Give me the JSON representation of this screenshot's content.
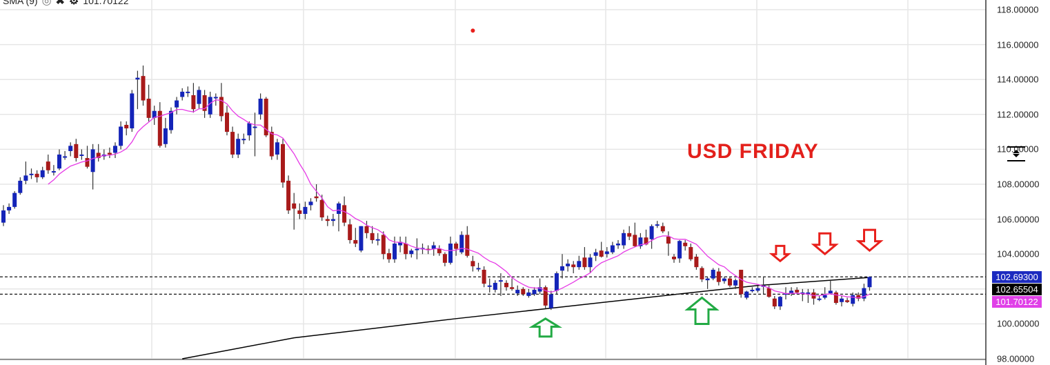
{
  "indicator": {
    "name": "SMA (9)",
    "value": "101.70122",
    "icons": [
      "eye-icon",
      "close-icon",
      "gear-icon"
    ]
  },
  "annotation": "USD FRIDAY",
  "price_tags": [
    {
      "value": "102.69300",
      "color": "#1c2bc0"
    },
    {
      "value": "102.65504",
      "color": "#000000"
    },
    {
      "value": "101.70122",
      "color": "#e040e8"
    }
  ],
  "colors": {
    "up": "#1424b8",
    "down": "#a81a1a",
    "sma_short": "#e63ae6",
    "sma_long": "#000000",
    "arrow_up": "#22aa44",
    "arrow_down": "#e8201c"
  },
  "chart_data": {
    "type": "candlestick",
    "y_axis": {
      "min": 98,
      "max": 118,
      "step": 2,
      "position": "right",
      "tick_labels": [
        "118.00000",
        "116.00000",
        "114.00000",
        "112.00000",
        "110.00000",
        "108.00000",
        "106.00000",
        "104.00000",
        "102.00000",
        "100.00000",
        "98.00000"
      ]
    },
    "grid": true,
    "ohlc": [
      [
        105.8,
        106.8,
        105.6,
        106.5
      ],
      [
        106.5,
        106.9,
        106.3,
        106.7
      ],
      [
        106.7,
        107.6,
        106.6,
        107.5
      ],
      [
        107.5,
        108.4,
        107.4,
        108.2
      ],
      [
        108.2,
        109.3,
        108.0,
        108.5
      ],
      [
        108.6,
        108.9,
        108.3,
        108.6
      ],
      [
        108.6,
        108.8,
        108.1,
        108.4
      ],
      [
        108.4,
        109.0,
        108.3,
        108.8
      ],
      [
        109.3,
        109.7,
        108.6,
        108.8
      ],
      [
        108.75,
        109.1,
        108.5,
        108.75
      ],
      [
        108.9,
        110.0,
        108.8,
        109.7
      ],
      [
        109.6,
        109.9,
        109.4,
        109.6
      ],
      [
        109.9,
        110.4,
        109.6,
        110.2
      ],
      [
        110.3,
        110.6,
        109.3,
        109.5
      ],
      [
        109.7,
        110.0,
        109.4,
        109.7
      ],
      [
        109.5,
        110.2,
        108.9,
        109.0
      ],
      [
        108.7,
        110.3,
        107.7,
        110.0
      ],
      [
        109.8,
        110.3,
        109.3,
        109.5
      ],
      [
        109.6,
        110.0,
        109.4,
        109.7
      ],
      [
        109.8,
        110.1,
        109.5,
        109.7
      ],
      [
        109.8,
        110.4,
        109.5,
        110.2
      ],
      [
        110.2,
        111.6,
        110.0,
        111.3
      ],
      [
        111.4,
        111.6,
        110.8,
        111.2
      ],
      [
        111.2,
        113.4,
        111.0,
        113.2
      ],
      [
        114.0,
        114.5,
        112.3,
        114.1
      ],
      [
        114.2,
        114.8,
        112.5,
        112.8
      ],
      [
        112.9,
        113.7,
        111.6,
        111.8
      ],
      [
        111.8,
        112.5,
        111.4,
        112.2
      ],
      [
        112.2,
        112.7,
        110.1,
        110.2
      ],
      [
        110.3,
        111.8,
        110.1,
        111.2
      ],
      [
        111.1,
        112.4,
        110.9,
        112.2
      ],
      [
        112.4,
        113.0,
        112.0,
        112.8
      ],
      [
        113.0,
        113.5,
        112.8,
        113.3
      ],
      [
        113.3,
        113.6,
        113.0,
        113.3
      ],
      [
        113.1,
        113.8,
        112.1,
        112.3
      ],
      [
        112.6,
        113.6,
        112.3,
        113.4
      ],
      [
        113.1,
        113.4,
        111.8,
        112.2
      ],
      [
        112.0,
        113.3,
        111.8,
        113.0
      ],
      [
        113.0,
        113.2,
        112.5,
        113.0
      ],
      [
        113.0,
        113.8,
        111.6,
        111.9
      ],
      [
        112.1,
        112.5,
        110.8,
        111.0
      ],
      [
        111.0,
        111.3,
        109.5,
        109.7
      ],
      [
        109.7,
        110.9,
        109.5,
        110.6
      ],
      [
        110.6,
        110.9,
        110.3,
        110.6
      ],
      [
        110.8,
        111.6,
        110.5,
        111.5
      ],
      [
        111.3,
        112.1,
        109.6,
        111.3
      ],
      [
        112.0,
        113.2,
        111.7,
        112.9
      ],
      [
        112.9,
        113.0,
        110.7,
        110.8
      ],
      [
        111.0,
        111.3,
        109.4,
        109.6
      ],
      [
        109.7,
        110.6,
        109.4,
        110.4
      ],
      [
        110.3,
        110.6,
        107.8,
        108.1
      ],
      [
        108.2,
        108.5,
        106.3,
        106.5
      ],
      [
        106.9,
        107.5,
        105.4,
        106.6
      ],
      [
        106.5,
        106.9,
        106.0,
        106.3
      ],
      [
        106.3,
        107.0,
        106.0,
        106.7
      ],
      [
        106.8,
        107.2,
        106.5,
        107.0
      ],
      [
        107.3,
        108.0,
        107.0,
        107.2
      ],
      [
        107.1,
        107.4,
        105.9,
        106.1
      ],
      [
        106.0,
        106.2,
        105.6,
        105.9
      ],
      [
        105.9,
        106.3,
        105.6,
        106.0
      ],
      [
        106.3,
        107.0,
        105.3,
        106.9
      ],
      [
        106.8,
        107.3,
        105.6,
        105.8
      ],
      [
        105.7,
        106.0,
        104.6,
        104.8
      ],
      [
        104.8,
        105.5,
        104.4,
        104.6
      ],
      [
        104.2,
        105.6,
        104.1,
        105.6
      ],
      [
        105.6,
        105.9,
        104.9,
        105.2
      ],
      [
        105.2,
        105.6,
        104.6,
        104.8
      ],
      [
        104.85,
        105.2,
        104.5,
        104.85
      ],
      [
        105.1,
        105.3,
        103.7,
        104.0
      ],
      [
        104.05,
        104.3,
        103.5,
        103.7
      ],
      [
        103.7,
        105.0,
        103.5,
        104.6
      ],
      [
        104.5,
        105.0,
        104.1,
        104.7
      ],
      [
        104.6,
        105.0,
        103.7,
        104.0
      ],
      [
        104.0,
        104.3,
        103.8,
        104.2
      ],
      [
        104.25,
        104.9,
        103.7,
        104.3
      ],
      [
        104.35,
        104.6,
        104.0,
        104.35
      ],
      [
        104.3,
        104.5,
        104.0,
        104.25
      ],
      [
        104.3,
        104.7,
        103.9,
        104.5
      ],
      [
        104.3,
        104.5,
        103.9,
        104.05
      ],
      [
        104.0,
        104.1,
        103.3,
        103.5
      ],
      [
        103.5,
        105.0,
        103.4,
        104.6
      ],
      [
        104.6,
        104.7,
        103.9,
        104.3
      ],
      [
        104.1,
        105.3,
        104.0,
        105.1
      ],
      [
        105.1,
        105.6,
        103.8,
        103.9
      ],
      [
        103.6,
        103.9,
        103.0,
        103.3
      ],
      [
        103.2,
        103.5,
        103.0,
        103.2
      ],
      [
        103.1,
        103.3,
        102.1,
        102.3
      ],
      [
        102.2,
        102.6,
        101.8,
        102.2
      ],
      [
        101.95,
        102.5,
        101.8,
        102.35
      ],
      [
        102.5,
        102.9,
        101.6,
        102.5
      ],
      [
        102.35,
        102.5,
        101.9,
        102.1
      ],
      [
        102.1,
        102.6,
        101.9,
        102.0
      ],
      [
        101.75,
        102.2,
        101.6,
        101.95
      ],
      [
        102.0,
        102.1,
        101.6,
        101.7
      ],
      [
        101.6,
        102.0,
        101.5,
        101.8
      ],
      [
        101.7,
        102.1,
        101.6,
        101.95
      ],
      [
        101.85,
        102.6,
        101.7,
        102.1
      ],
      [
        102.1,
        102.2,
        100.9,
        101.05
      ],
      [
        100.9,
        101.9,
        100.8,
        101.7
      ],
      [
        101.9,
        103.0,
        101.7,
        102.9
      ],
      [
        103.05,
        104.0,
        102.6,
        103.3
      ],
      [
        103.3,
        103.7,
        103.0,
        103.45
      ],
      [
        103.4,
        103.6,
        102.9,
        103.25
      ],
      [
        103.25,
        103.9,
        103.1,
        103.6
      ],
      [
        103.8,
        104.4,
        103.1,
        103.25
      ],
      [
        103.25,
        104.0,
        102.9,
        103.8
      ],
      [
        103.9,
        104.3,
        103.6,
        104.1
      ],
      [
        104.2,
        104.7,
        103.8,
        103.85
      ],
      [
        104.0,
        104.4,
        103.8,
        104.15
      ],
      [
        104.1,
        104.7,
        104.0,
        104.5
      ],
      [
        104.5,
        104.8,
        104.3,
        104.6
      ],
      [
        104.5,
        105.4,
        104.3,
        105.2
      ],
      [
        105.2,
        105.6,
        104.8,
        105.0
      ],
      [
        105.1,
        105.8,
        104.4,
        104.45
      ],
      [
        104.45,
        105.2,
        104.3,
        104.95
      ],
      [
        104.95,
        105.4,
        104.5,
        104.55
      ],
      [
        104.85,
        105.7,
        104.3,
        105.6
      ],
      [
        105.7,
        105.9,
        105.5,
        105.7
      ],
      [
        105.6,
        105.8,
        105.2,
        105.3
      ],
      [
        105.0,
        105.3,
        103.9,
        104.6
      ],
      [
        103.85,
        104.0,
        103.5,
        103.7
      ],
      [
        103.75,
        104.8,
        103.5,
        104.75
      ],
      [
        104.65,
        104.8,
        104.2,
        104.45
      ],
      [
        104.4,
        104.6,
        103.6,
        103.7
      ],
      [
        103.85,
        104.0,
        103.1,
        103.25
      ],
      [
        103.2,
        103.3,
        102.4,
        102.55
      ],
      [
        102.5,
        102.7,
        102.0,
        102.6
      ],
      [
        102.6,
        103.2,
        102.5,
        103.1
      ],
      [
        103.0,
        103.2,
        102.2,
        102.4
      ],
      [
        102.45,
        102.7,
        102.3,
        102.6
      ],
      [
        102.6,
        102.7,
        102.1,
        102.2
      ],
      [
        102.2,
        102.6,
        102.0,
        102.5
      ],
      [
        103.1,
        103.1,
        101.5,
        101.7
      ],
      [
        101.5,
        101.9,
        101.4,
        101.85
      ],
      [
        101.95,
        102.1,
        101.8,
        101.95
      ],
      [
        101.9,
        102.2,
        101.8,
        102.05
      ],
      [
        102.2,
        102.7,
        101.7,
        102.2
      ],
      [
        102.05,
        102.2,
        101.5,
        101.55
      ],
      [
        101.45,
        101.6,
        100.85,
        101.0
      ],
      [
        101.0,
        101.6,
        100.8,
        101.55
      ],
      [
        101.75,
        102.1,
        101.4,
        101.75
      ],
      [
        101.75,
        102.1,
        101.6,
        101.9
      ],
      [
        101.95,
        102.1,
        101.7,
        101.8
      ],
      [
        101.8,
        102.0,
        101.3,
        101.8
      ],
      [
        101.8,
        102.0,
        101.2,
        101.8
      ],
      [
        101.8,
        102.0,
        101.1,
        101.45
      ],
      [
        101.45,
        101.6,
        101.3,
        101.45
      ],
      [
        101.5,
        102.1,
        101.4,
        101.65
      ],
      [
        101.75,
        102.5,
        101.7,
        101.9
      ],
      [
        101.8,
        101.9,
        101.1,
        101.2
      ],
      [
        101.25,
        101.6,
        101.0,
        101.45
      ],
      [
        101.35,
        101.5,
        101.2,
        101.25
      ],
      [
        101.15,
        101.8,
        101.0,
        101.65
      ],
      [
        101.65,
        101.8,
        101.3,
        101.45
      ],
      [
        101.45,
        102.3,
        101.3,
        102.05
      ],
      [
        102.1,
        102.72,
        101.9,
        102.69
      ]
    ],
    "sma_short": {
      "name": "SMA (9)",
      "period": 9,
      "last_value": 101.70122
    },
    "sma_long": {
      "points": [
        [
          32,
          98.0
        ],
        [
          52,
          99.2
        ],
        [
          81,
          100.3
        ],
        [
          98,
          100.9
        ],
        [
          122,
          101.75
        ],
        [
          135,
          102.2
        ],
        [
          155,
          102.66
        ]
      ],
      "last_value": 102.65504
    },
    "horizontal_lines": [
      102.693,
      101.70122
    ],
    "marker_dot": {
      "index": 84,
      "value": 116.8,
      "color": "#e8201c"
    },
    "arrows": [
      {
        "direction": "up",
        "index": 97,
        "value": 100.3,
        "color": "#22aa44"
      },
      {
        "direction": "up",
        "index": 125,
        "value": 101.5,
        "color": "#22aa44"
      },
      {
        "direction": "down",
        "index": 139,
        "value": 103.6,
        "color": "#e8201c"
      },
      {
        "direction": "down",
        "index": 147,
        "value": 104.0,
        "color": "#e8201c"
      },
      {
        "direction": "down",
        "index": 155,
        "value": 104.2,
        "color": "#e8201c"
      }
    ]
  }
}
